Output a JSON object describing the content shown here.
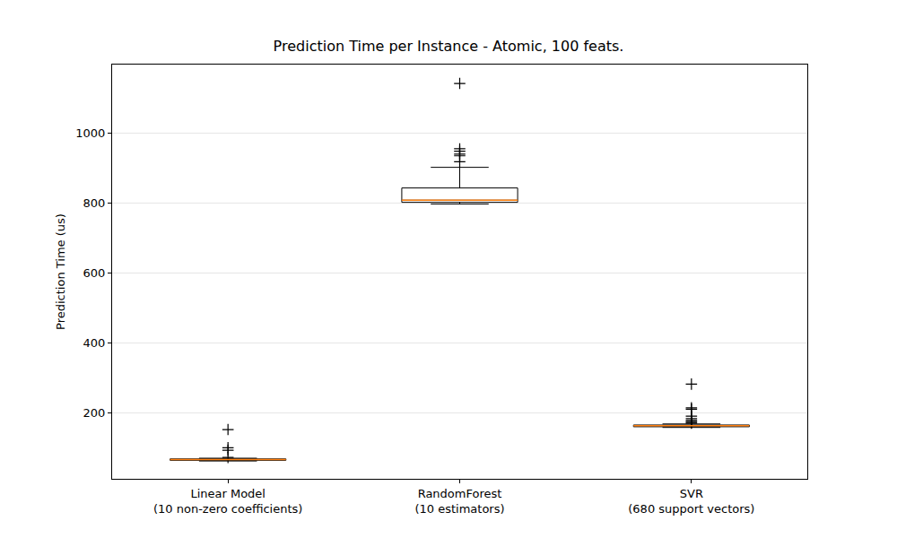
{
  "chart_data": {
    "type": "box",
    "title": "Prediction Time per Instance - Atomic, 100 feats.",
    "y_label": "Prediction Time (us)",
    "categories": [
      "Linear Model\n(10 non-zero coefficients)",
      "RandomForest\n(10 estimators)",
      "SVR\n(680 support vectors)"
    ],
    "boxes": [
      {
        "whisker_low": 62,
        "q1": 64,
        "median": 66,
        "q3": 68,
        "whisker_high": 70,
        "outliers": [
          152,
          100,
          93,
          72
        ]
      },
      {
        "whisker_low": 797,
        "q1": 802,
        "median": 808,
        "q3": 843,
        "whisker_high": 902,
        "outliers": [
          1142,
          955,
          948,
          940,
          935,
          918
        ]
      },
      {
        "whisker_low": 158,
        "q1": 160,
        "median": 163,
        "q3": 165,
        "whisker_high": 168,
        "outliers": [
          282,
          214,
          210,
          190,
          183,
          178,
          175,
          172,
          170
        ]
      }
    ],
    "color": "#000000",
    "ylim": [
      11,
      1196
    ],
    "yticks": [
      200,
      400,
      600,
      800,
      1000
    ],
    "grid": true
  }
}
